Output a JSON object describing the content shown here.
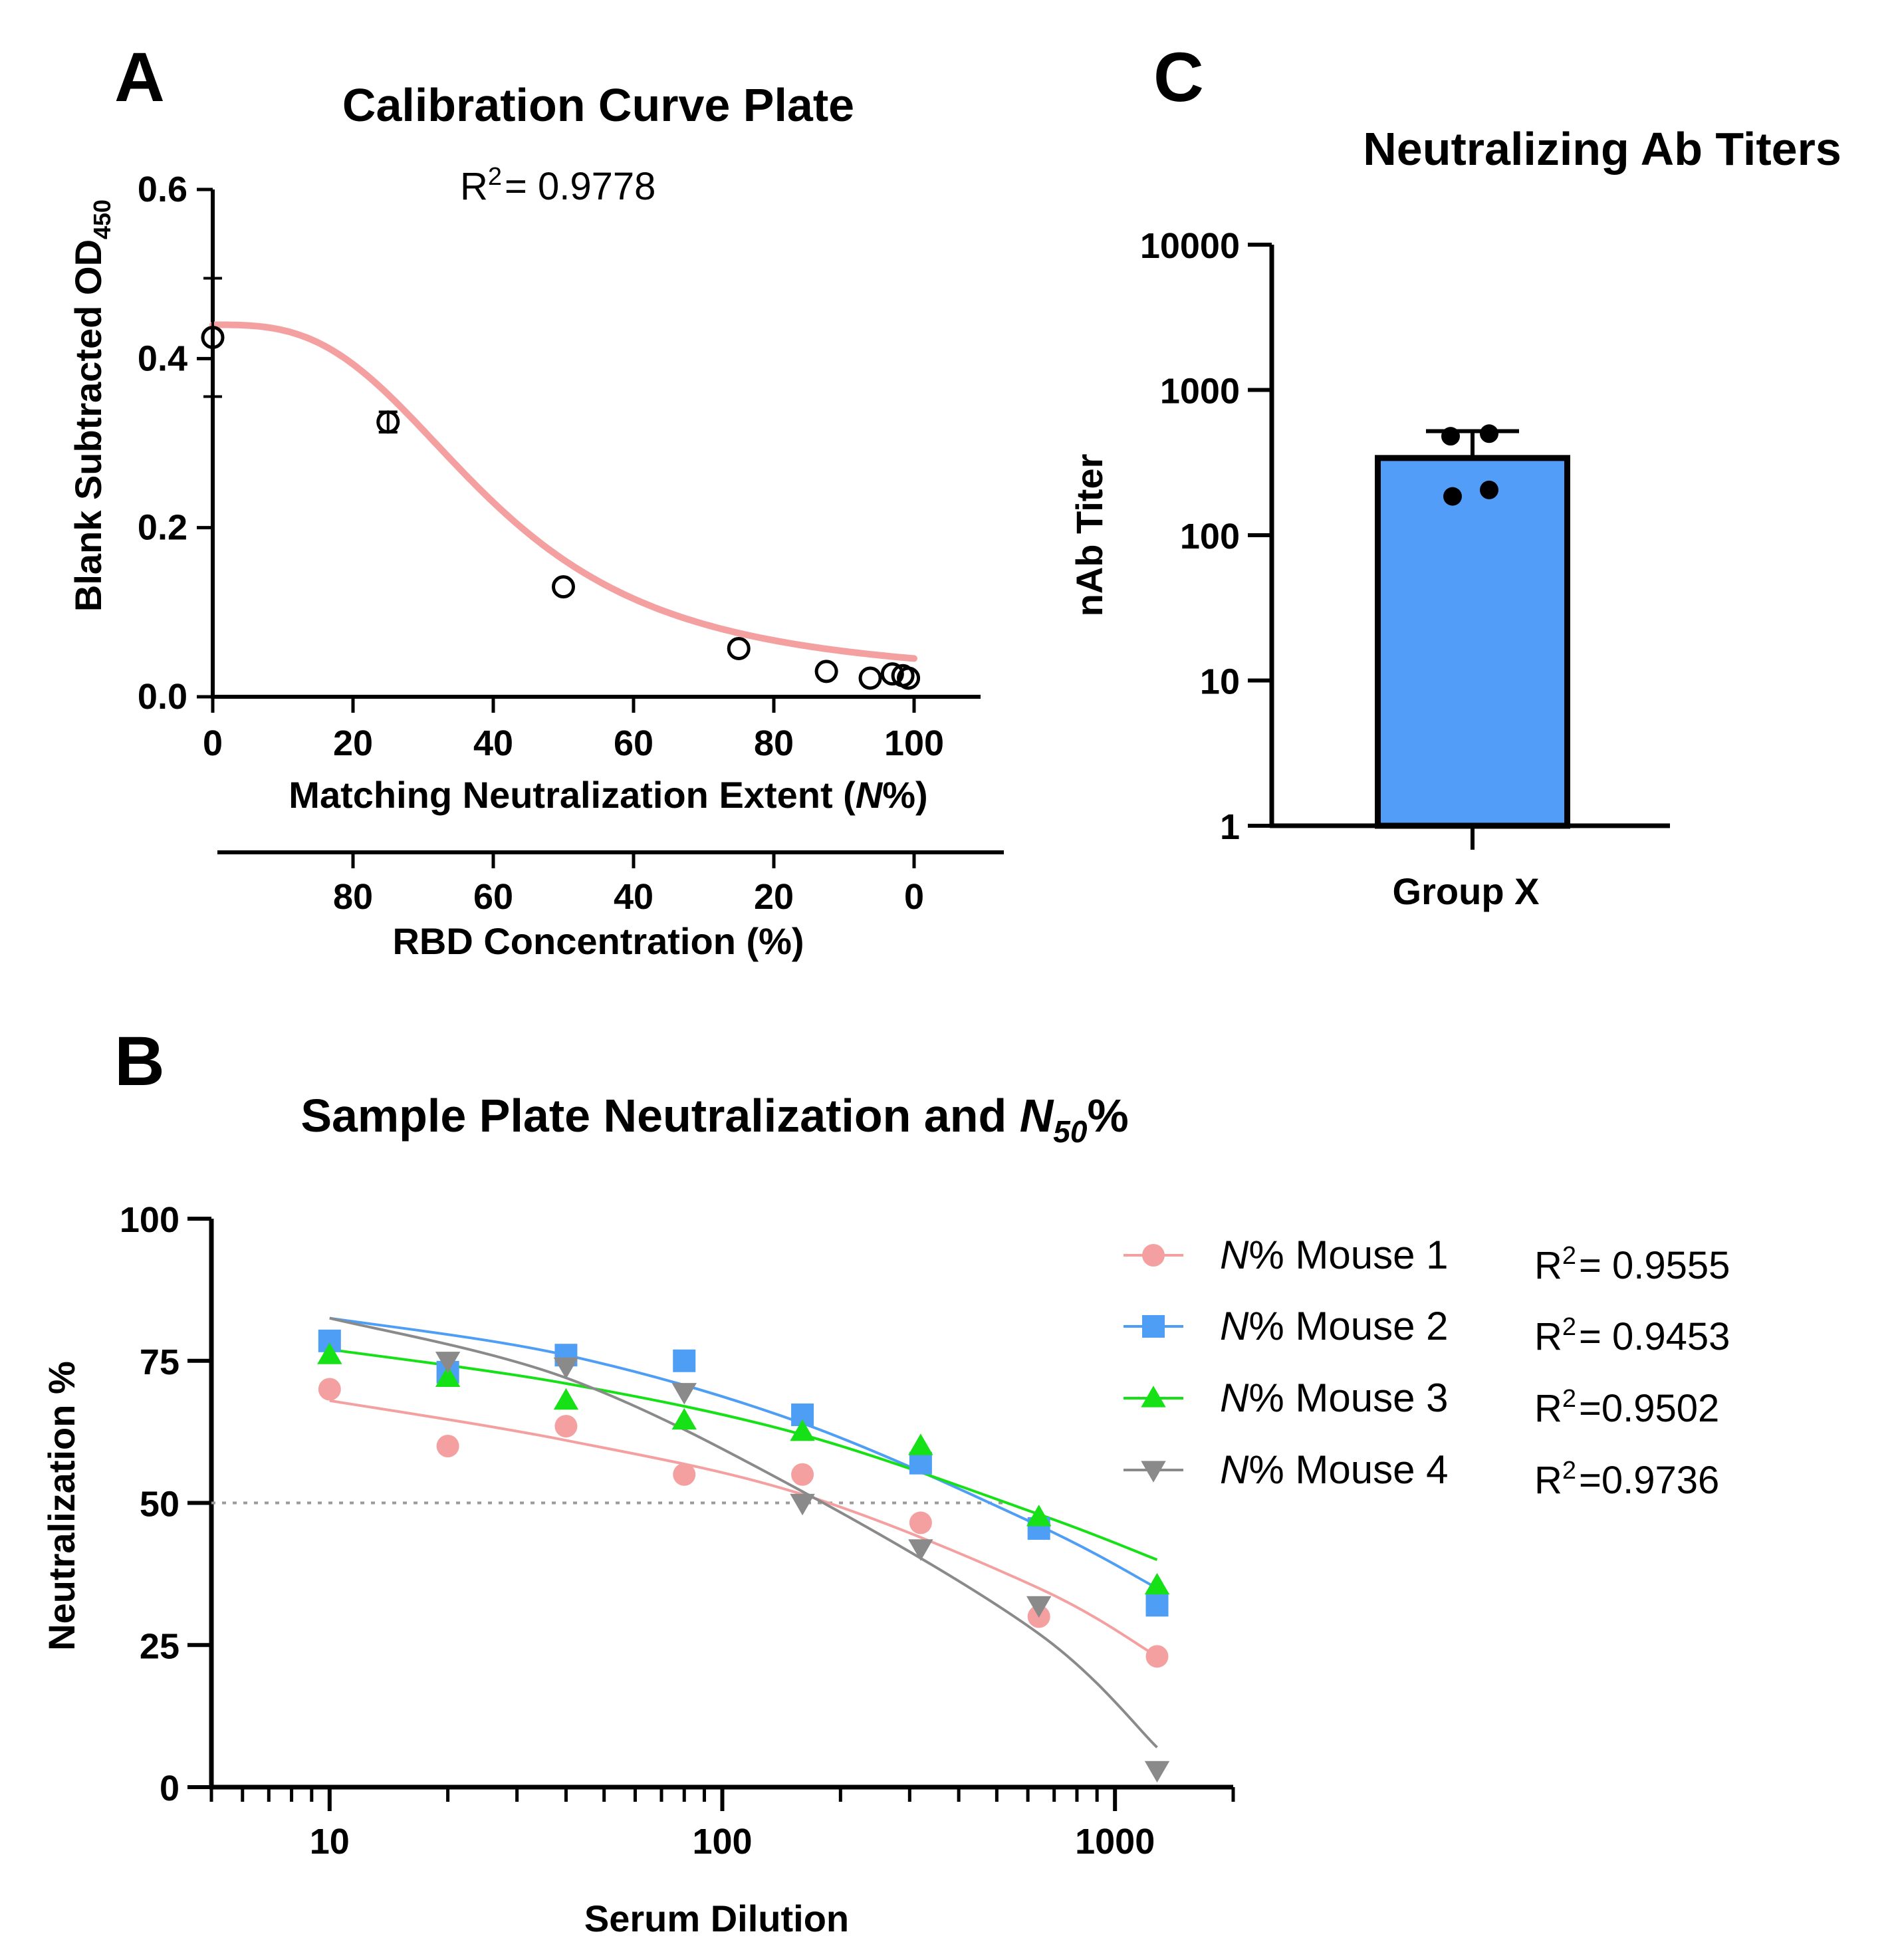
{
  "panels": {
    "A": {
      "letter": "A"
    },
    "B": {
      "letter": "B"
    },
    "C": {
      "letter": "C"
    }
  },
  "chart_data": [
    {
      "id": "A",
      "type": "scatter",
      "title": "Calibration Curve Plate",
      "r2_label": "R",
      "r2_sup": "2",
      "r2_value": "= 0.9778",
      "ylabel": "Blank Subtracted OD",
      "ylabel_sub": "450",
      "xlabel": "Matching Neutralization Extent (",
      "xlabel_italic": "N",
      "xlabel_suffix": "%)",
      "x2label": "RBD Concentration (%)",
      "xlim": [
        0,
        110
      ],
      "ylim": [
        0,
        0.6
      ],
      "xticks": [
        0,
        20,
        40,
        60,
        80,
        100
      ],
      "yticks": [
        0.0,
        0.2,
        0.4,
        0.6
      ],
      "x2ticks": [
        80,
        60,
        40,
        20,
        0
      ],
      "points": [
        {
          "x": 0,
          "y": 0.425,
          "err": 0.07
        },
        {
          "x": 25,
          "y": 0.325,
          "err": 0.012
        },
        {
          "x": 50,
          "y": 0.13,
          "err": 0
        },
        {
          "x": 75,
          "y": 0.057,
          "err": 0
        },
        {
          "x": 87.5,
          "y": 0.03,
          "err": 0
        },
        {
          "x": 93.75,
          "y": 0.022,
          "err": 0
        },
        {
          "x": 96.9,
          "y": 0.027,
          "err": 0
        },
        {
          "x": 98.4,
          "y": 0.025,
          "err": 0
        },
        {
          "x": 99.2,
          "y": 0.022,
          "err": 0
        }
      ],
      "fit": {
        "top": 0.44,
        "bottom": 0.02,
        "ec50": 40,
        "hill": 3.0,
        "color": "#f5a0a0"
      }
    },
    {
      "id": "B",
      "type": "scatter",
      "title": "Sample Plate Neutralization and ",
      "title_italic": "N",
      "title_sub": "50",
      "title_suffix": "%",
      "xlabel": "Serum Dilution",
      "ylabel": "Neutralization %",
      "xscale": "log",
      "xlim": [
        5,
        2000
      ],
      "ylim": [
        0,
        100
      ],
      "xticks": [
        10,
        100,
        1000
      ],
      "yticks": [
        0,
        25,
        50,
        75,
        100
      ],
      "reference_line": 50,
      "x": [
        10,
        20,
        40,
        80,
        160,
        320,
        640,
        1280
      ],
      "series": [
        {
          "name": "Mouse 1",
          "legend_italic": "N",
          "legend_text": "% Mouse 1",
          "marker": "circle",
          "color": "#f5a0a0",
          "values": [
            70,
            60,
            63.5,
            55,
            55,
            46.5,
            30,
            23
          ],
          "fit_points": [
            [
              10,
              68
            ],
            [
              40,
              61
            ],
            [
              160,
              51.5
            ],
            [
              640,
              35
            ],
            [
              1280,
              23
            ]
          ],
          "r2_value": "= 0.9555"
        },
        {
          "name": "Mouse 2",
          "legend_italic": "N",
          "legend_text": "% Mouse 2",
          "marker": "square",
          "color": "#4f9ef5",
          "values": [
            78.5,
            73,
            76,
            75,
            65.5,
            57,
            45.5,
            32
          ],
          "fit_points": [
            [
              10,
              82.5
            ],
            [
              40,
              76
            ],
            [
              160,
              64
            ],
            [
              640,
              46
            ],
            [
              1280,
              35
            ]
          ],
          "r2_value": "= 0.9453"
        },
        {
          "name": "Mouse 3",
          "legend_italic": "N",
          "legend_text": "% Mouse 3",
          "marker": "triangle-up",
          "color": "#16e016",
          "values": [
            76,
            72,
            68,
            64.5,
            62.5,
            60,
            47.5,
            35.5
          ],
          "fit_points": [
            [
              10,
              77
            ],
            [
              40,
              71
            ],
            [
              160,
              62
            ],
            [
              640,
              48
            ],
            [
              1280,
              40
            ]
          ],
          "r2_value": "=0.9502"
        },
        {
          "name": "Mouse 4",
          "legend_italic": "N",
          "legend_text": "% Mouse 4",
          "marker": "triangle-down",
          "color": "#8a8a8a",
          "values": [
            null,
            75,
            74,
            69.5,
            50,
            42,
            32,
            3
          ],
          "fit_points": [
            [
              10,
              82.5
            ],
            [
              40,
              72
            ],
            [
              160,
              52
            ],
            [
              640,
              27
            ],
            [
              1280,
              7
            ]
          ],
          "r2_value": "=0.9736"
        }
      ],
      "r2_label": "R",
      "r2_sup": "2"
    },
    {
      "id": "C",
      "type": "bar",
      "title": "Neutralizing Ab Titers",
      "ylabel": "nAb Titer",
      "yscale": "log",
      "ylim": [
        1,
        10000
      ],
      "yticks": [
        1,
        10,
        100,
        1000,
        10000
      ],
      "categories": [
        "Group X"
      ],
      "values": [
        340
      ],
      "error_upper": 520,
      "points": [
        480,
        500,
        185,
        205
      ],
      "bar_color": "#519df7"
    }
  ]
}
